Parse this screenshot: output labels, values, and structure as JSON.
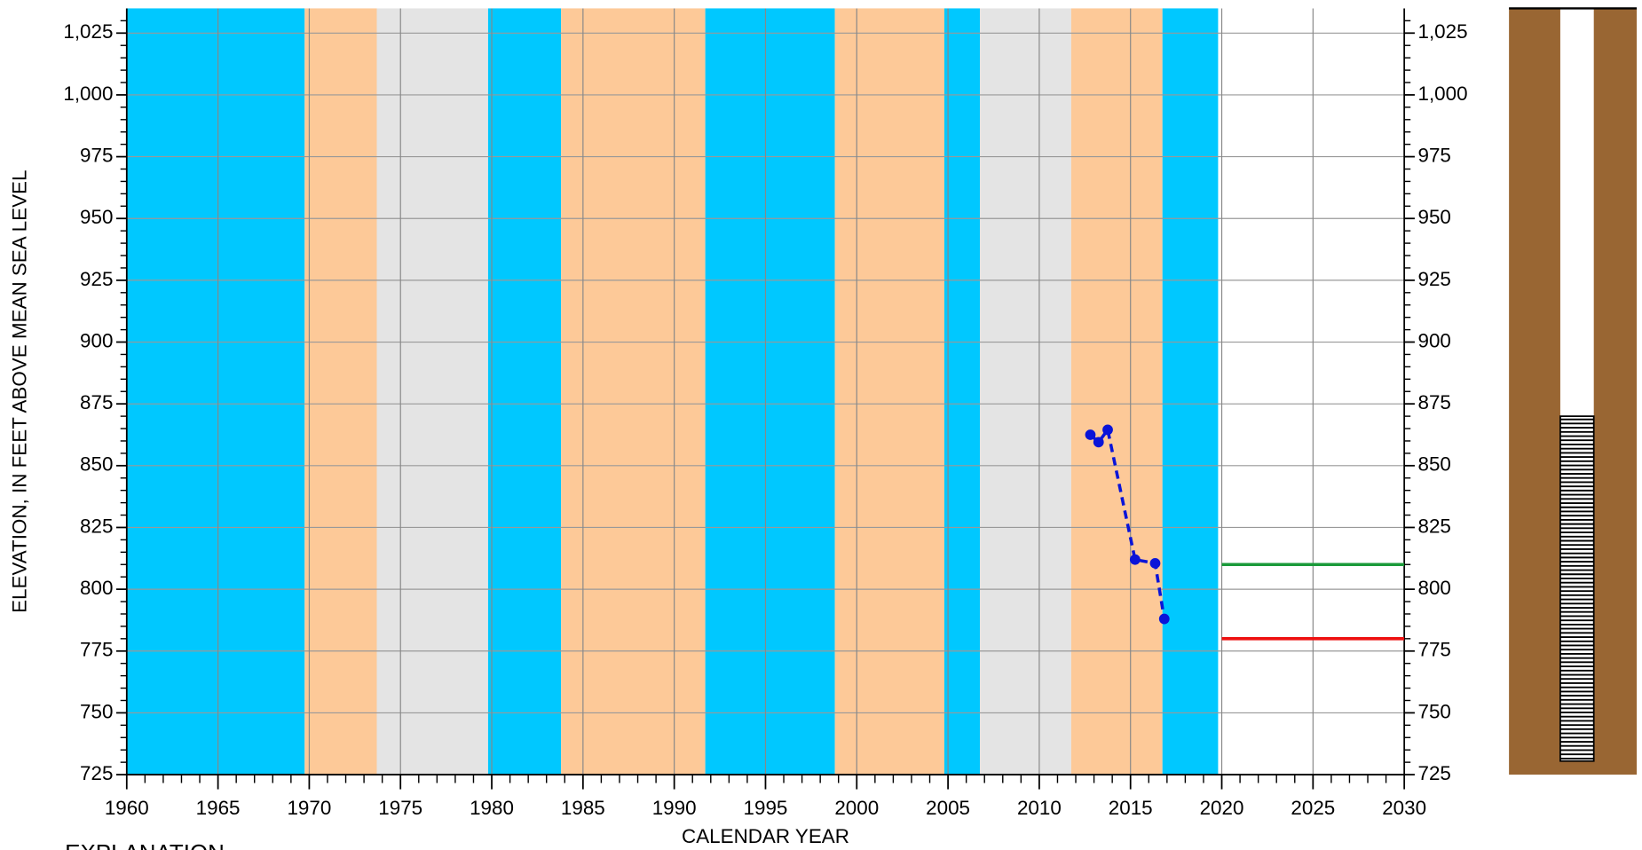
{
  "chart_data": {
    "type": "line",
    "y_label": "ELEVATION, IN FEET ABOVE MEAN SEA LEVEL",
    "x_label": "CALENDAR YEAR",
    "explanation": "EXPLANATION",
    "xlim": [
      1960,
      2030
    ],
    "ylim": [
      725,
      1035
    ],
    "xticks": [
      1960,
      1965,
      1970,
      1975,
      1980,
      1985,
      1990,
      1995,
      2000,
      2005,
      2010,
      2015,
      2020,
      2025,
      2030
    ],
    "yticks": [
      725,
      750,
      775,
      800,
      825,
      850,
      875,
      900,
      925,
      950,
      975,
      {
        "value": 1000,
        "label": "1,000"
      },
      {
        "value": 1025,
        "label": "1,025"
      }
    ],
    "grid": true,
    "bands": [
      {
        "start": 1960,
        "end": 1969.75,
        "color": "#00c8ff"
      },
      {
        "start": 1969.75,
        "end": 1973.7,
        "color": "#fdc998"
      },
      {
        "start": 1973.7,
        "end": 1979.8,
        "color": "#e4e4e4"
      },
      {
        "start": 1979.8,
        "end": 1983.8,
        "color": "#00c8ff"
      },
      {
        "start": 1983.8,
        "end": 1991.7,
        "color": "#fdc998"
      },
      {
        "start": 1991.7,
        "end": 1998.8,
        "color": "#00c8ff"
      },
      {
        "start": 1998.8,
        "end": 2004.8,
        "color": "#fdc998"
      },
      {
        "start": 2004.8,
        "end": 2006.75,
        "color": "#00c8ff"
      },
      {
        "start": 2006.75,
        "end": 2011.75,
        "color": "#e4e4e4"
      },
      {
        "start": 2011.75,
        "end": 2016.75,
        "color": "#fdc998"
      },
      {
        "start": 2016.75,
        "end": 2019.8,
        "color": "#00c8ff"
      }
    ],
    "series": [
      {
        "color": "#0a14d8",
        "dashed": true,
        "x": [
          2012.8,
          2013.25,
          2013.75,
          2015.25,
          2016.35,
          2016.85
        ],
        "values": [
          862.5,
          859.5,
          864.5,
          812,
          810.5,
          788
        ]
      }
    ],
    "hlines": [
      {
        "value": 810,
        "start": 2020,
        "end": 2030,
        "color": "#1a9a3a"
      },
      {
        "value": 780,
        "start": 2020,
        "end": 2030,
        "color": "#ee1111"
      }
    ],
    "well": {
      "screen_top": 870,
      "screen_bottom": 730.5
    }
  }
}
